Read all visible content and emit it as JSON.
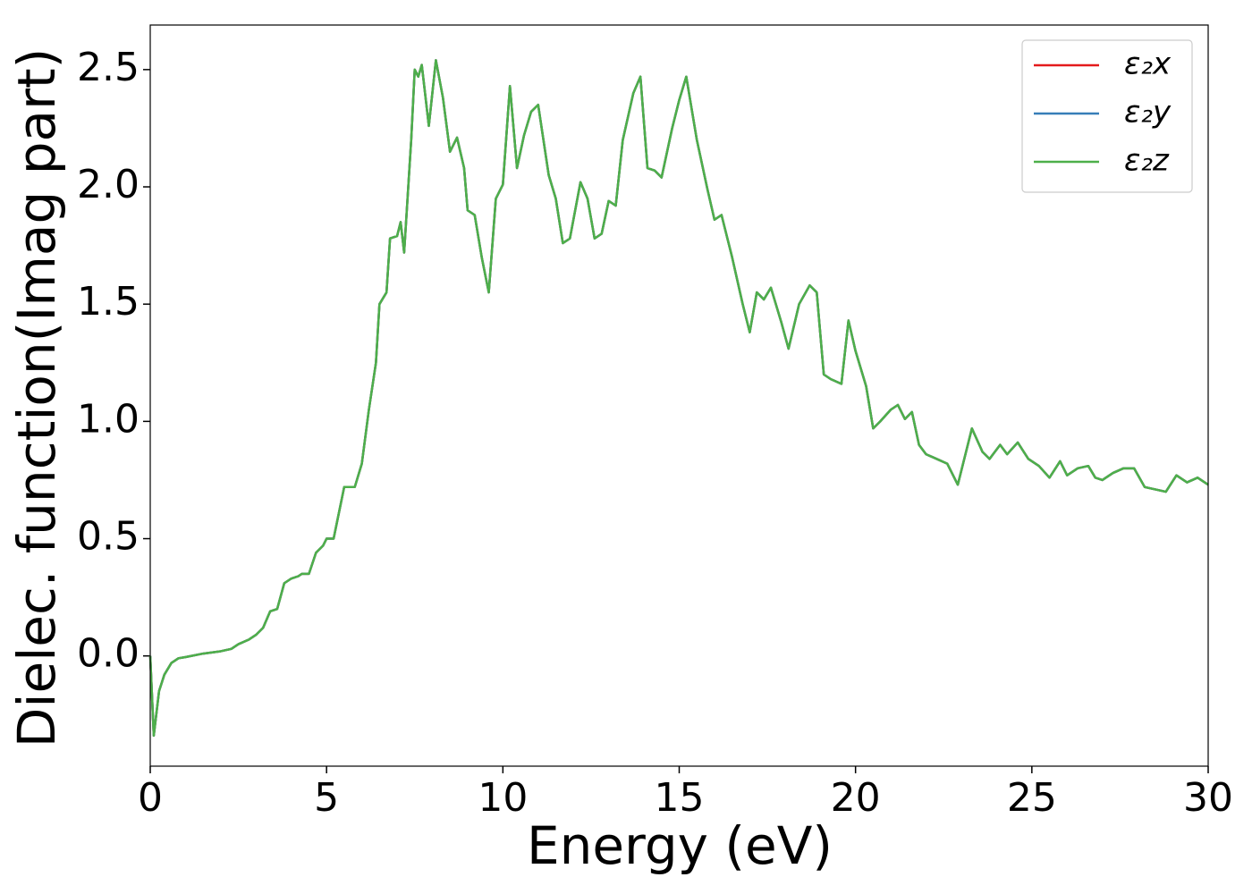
{
  "chart_data": {
    "type": "line",
    "xlabel": "Energy (eV)",
    "ylabel": "Dielec. function(Imag part)",
    "x": [
      0.0,
      0.1,
      0.25,
      0.4,
      0.6,
      0.8,
      1.0,
      1.5,
      2.0,
      2.3,
      2.5,
      2.8,
      3.0,
      3.2,
      3.4,
      3.6,
      3.8,
      4.0,
      4.2,
      4.3,
      4.5,
      4.7,
      4.9,
      5.0,
      5.2,
      5.5,
      5.8,
      6.0,
      6.2,
      6.4,
      6.5,
      6.7,
      6.8,
      7.0,
      7.1,
      7.2,
      7.4,
      7.5,
      7.6,
      7.7,
      7.9,
      8.1,
      8.3,
      8.5,
      8.7,
      8.9,
      9.0,
      9.2,
      9.4,
      9.6,
      9.8,
      10.0,
      10.2,
      10.4,
      10.6,
      10.8,
      11.0,
      11.3,
      11.5,
      11.7,
      11.9,
      12.2,
      12.4,
      12.6,
      12.8,
      13.0,
      13.2,
      13.4,
      13.7,
      13.9,
      14.1,
      14.3,
      14.5,
      14.8,
      15.0,
      15.2,
      15.5,
      15.8,
      16.0,
      16.2,
      16.5,
      16.8,
      17.0,
      17.2,
      17.4,
      17.6,
      17.9,
      18.1,
      18.4,
      18.7,
      18.9,
      19.1,
      19.3,
      19.6,
      19.8,
      20.0,
      20.3,
      20.5,
      20.7,
      21.0,
      21.2,
      21.4,
      21.6,
      21.8,
      22.0,
      22.3,
      22.6,
      22.9,
      23.3,
      23.6,
      23.8,
      24.1,
      24.3,
      24.6,
      24.9,
      25.2,
      25.5,
      25.8,
      26.0,
      26.3,
      26.6,
      26.8,
      27.0,
      27.3,
      27.6,
      27.9,
      28.2,
      28.5,
      28.8,
      29.1,
      29.4,
      29.7,
      30.0
    ],
    "series": [
      {
        "name": "ε₂x",
        "color": "#e41a1c",
        "values": [
          0.0,
          -0.34,
          -0.15,
          -0.08,
          -0.03,
          -0.01,
          -0.005,
          0.01,
          0.02,
          0.03,
          0.05,
          0.07,
          0.09,
          0.12,
          0.19,
          0.2,
          0.31,
          0.33,
          0.34,
          0.35,
          0.35,
          0.44,
          0.47,
          0.5,
          0.5,
          0.72,
          0.72,
          0.82,
          1.05,
          1.25,
          1.5,
          1.55,
          1.78,
          1.79,
          1.85,
          1.72,
          2.2,
          2.5,
          2.47,
          2.52,
          2.26,
          2.54,
          2.38,
          2.15,
          2.21,
          2.08,
          1.9,
          1.88,
          1.7,
          1.55,
          1.95,
          2.01,
          2.43,
          2.08,
          2.22,
          2.32,
          2.35,
          2.05,
          1.95,
          1.76,
          1.78,
          2.02,
          1.95,
          1.78,
          1.8,
          1.94,
          1.92,
          2.2,
          2.4,
          2.47,
          2.08,
          2.07,
          2.04,
          2.25,
          2.37,
          2.47,
          2.2,
          1.99,
          1.86,
          1.88,
          1.7,
          1.5,
          1.38,
          1.55,
          1.52,
          1.57,
          1.42,
          1.31,
          1.5,
          1.58,
          1.55,
          1.2,
          1.18,
          1.16,
          1.43,
          1.3,
          1.15,
          0.97,
          1.0,
          1.05,
          1.07,
          1.01,
          1.04,
          0.9,
          0.86,
          0.84,
          0.82,
          0.73,
          0.97,
          0.87,
          0.84,
          0.9,
          0.86,
          0.91,
          0.84,
          0.81,
          0.76,
          0.83,
          0.77,
          0.8,
          0.81,
          0.76,
          0.75,
          0.78,
          0.8,
          0.8,
          0.72,
          0.71,
          0.7,
          0.77,
          0.74,
          0.76,
          0.73
        ]
      },
      {
        "name": "ε₂y",
        "color": "#377eb8",
        "values": [
          0.0,
          -0.34,
          -0.15,
          -0.08,
          -0.03,
          -0.01,
          -0.005,
          0.01,
          0.02,
          0.03,
          0.05,
          0.07,
          0.09,
          0.12,
          0.19,
          0.2,
          0.31,
          0.33,
          0.34,
          0.35,
          0.35,
          0.44,
          0.47,
          0.5,
          0.5,
          0.72,
          0.72,
          0.82,
          1.05,
          1.25,
          1.5,
          1.55,
          1.78,
          1.79,
          1.85,
          1.72,
          2.2,
          2.5,
          2.47,
          2.52,
          2.26,
          2.54,
          2.38,
          2.15,
          2.21,
          2.08,
          1.9,
          1.88,
          1.7,
          1.55,
          1.95,
          2.01,
          2.43,
          2.08,
          2.22,
          2.32,
          2.35,
          2.05,
          1.95,
          1.76,
          1.78,
          2.02,
          1.95,
          1.78,
          1.8,
          1.94,
          1.92,
          2.2,
          2.4,
          2.47,
          2.08,
          2.07,
          2.04,
          2.25,
          2.37,
          2.47,
          2.2,
          1.99,
          1.86,
          1.88,
          1.7,
          1.5,
          1.38,
          1.55,
          1.52,
          1.57,
          1.42,
          1.31,
          1.5,
          1.58,
          1.55,
          1.2,
          1.18,
          1.16,
          1.43,
          1.3,
          1.15,
          0.97,
          1.0,
          1.05,
          1.07,
          1.01,
          1.04,
          0.9,
          0.86,
          0.84,
          0.82,
          0.73,
          0.97,
          0.87,
          0.84,
          0.9,
          0.86,
          0.91,
          0.84,
          0.81,
          0.76,
          0.83,
          0.77,
          0.8,
          0.81,
          0.76,
          0.75,
          0.78,
          0.8,
          0.8,
          0.72,
          0.71,
          0.7,
          0.77,
          0.74,
          0.76,
          0.73
        ]
      },
      {
        "name": "ε₂z",
        "color": "#4daf4a",
        "values": [
          0.0,
          -0.34,
          -0.15,
          -0.08,
          -0.03,
          -0.01,
          -0.005,
          0.01,
          0.02,
          0.03,
          0.05,
          0.07,
          0.09,
          0.12,
          0.19,
          0.2,
          0.31,
          0.33,
          0.34,
          0.35,
          0.35,
          0.44,
          0.47,
          0.5,
          0.5,
          0.72,
          0.72,
          0.82,
          1.05,
          1.25,
          1.5,
          1.55,
          1.78,
          1.79,
          1.85,
          1.72,
          2.2,
          2.5,
          2.47,
          2.52,
          2.26,
          2.54,
          2.38,
          2.15,
          2.21,
          2.08,
          1.9,
          1.88,
          1.7,
          1.55,
          1.95,
          2.01,
          2.43,
          2.08,
          2.22,
          2.32,
          2.35,
          2.05,
          1.95,
          1.76,
          1.78,
          2.02,
          1.95,
          1.78,
          1.8,
          1.94,
          1.92,
          2.2,
          2.4,
          2.47,
          2.08,
          2.07,
          2.04,
          2.25,
          2.37,
          2.47,
          2.2,
          1.99,
          1.86,
          1.88,
          1.7,
          1.5,
          1.38,
          1.55,
          1.52,
          1.57,
          1.42,
          1.31,
          1.5,
          1.58,
          1.55,
          1.2,
          1.18,
          1.16,
          1.43,
          1.3,
          1.15,
          0.97,
          1.0,
          1.05,
          1.07,
          1.01,
          1.04,
          0.9,
          0.86,
          0.84,
          0.82,
          0.73,
          0.97,
          0.87,
          0.84,
          0.9,
          0.86,
          0.91,
          0.84,
          0.81,
          0.76,
          0.83,
          0.77,
          0.8,
          0.81,
          0.76,
          0.75,
          0.78,
          0.8,
          0.8,
          0.72,
          0.71,
          0.7,
          0.77,
          0.74,
          0.76,
          0.73
        ]
      }
    ],
    "xlim": [
      0,
      30
    ],
    "xticks": [
      0,
      5,
      10,
      15,
      20,
      25,
      30
    ],
    "ylim": [
      -0.47,
      2.69
    ],
    "yticks": [
      {
        "value": 0,
        "label": "0.0"
      },
      0.5,
      {
        "value": 1,
        "label": "1.0"
      },
      1.5,
      {
        "value": 2,
        "label": "2.0"
      },
      2.5
    ],
    "grid": false,
    "legend": "upper right"
  }
}
